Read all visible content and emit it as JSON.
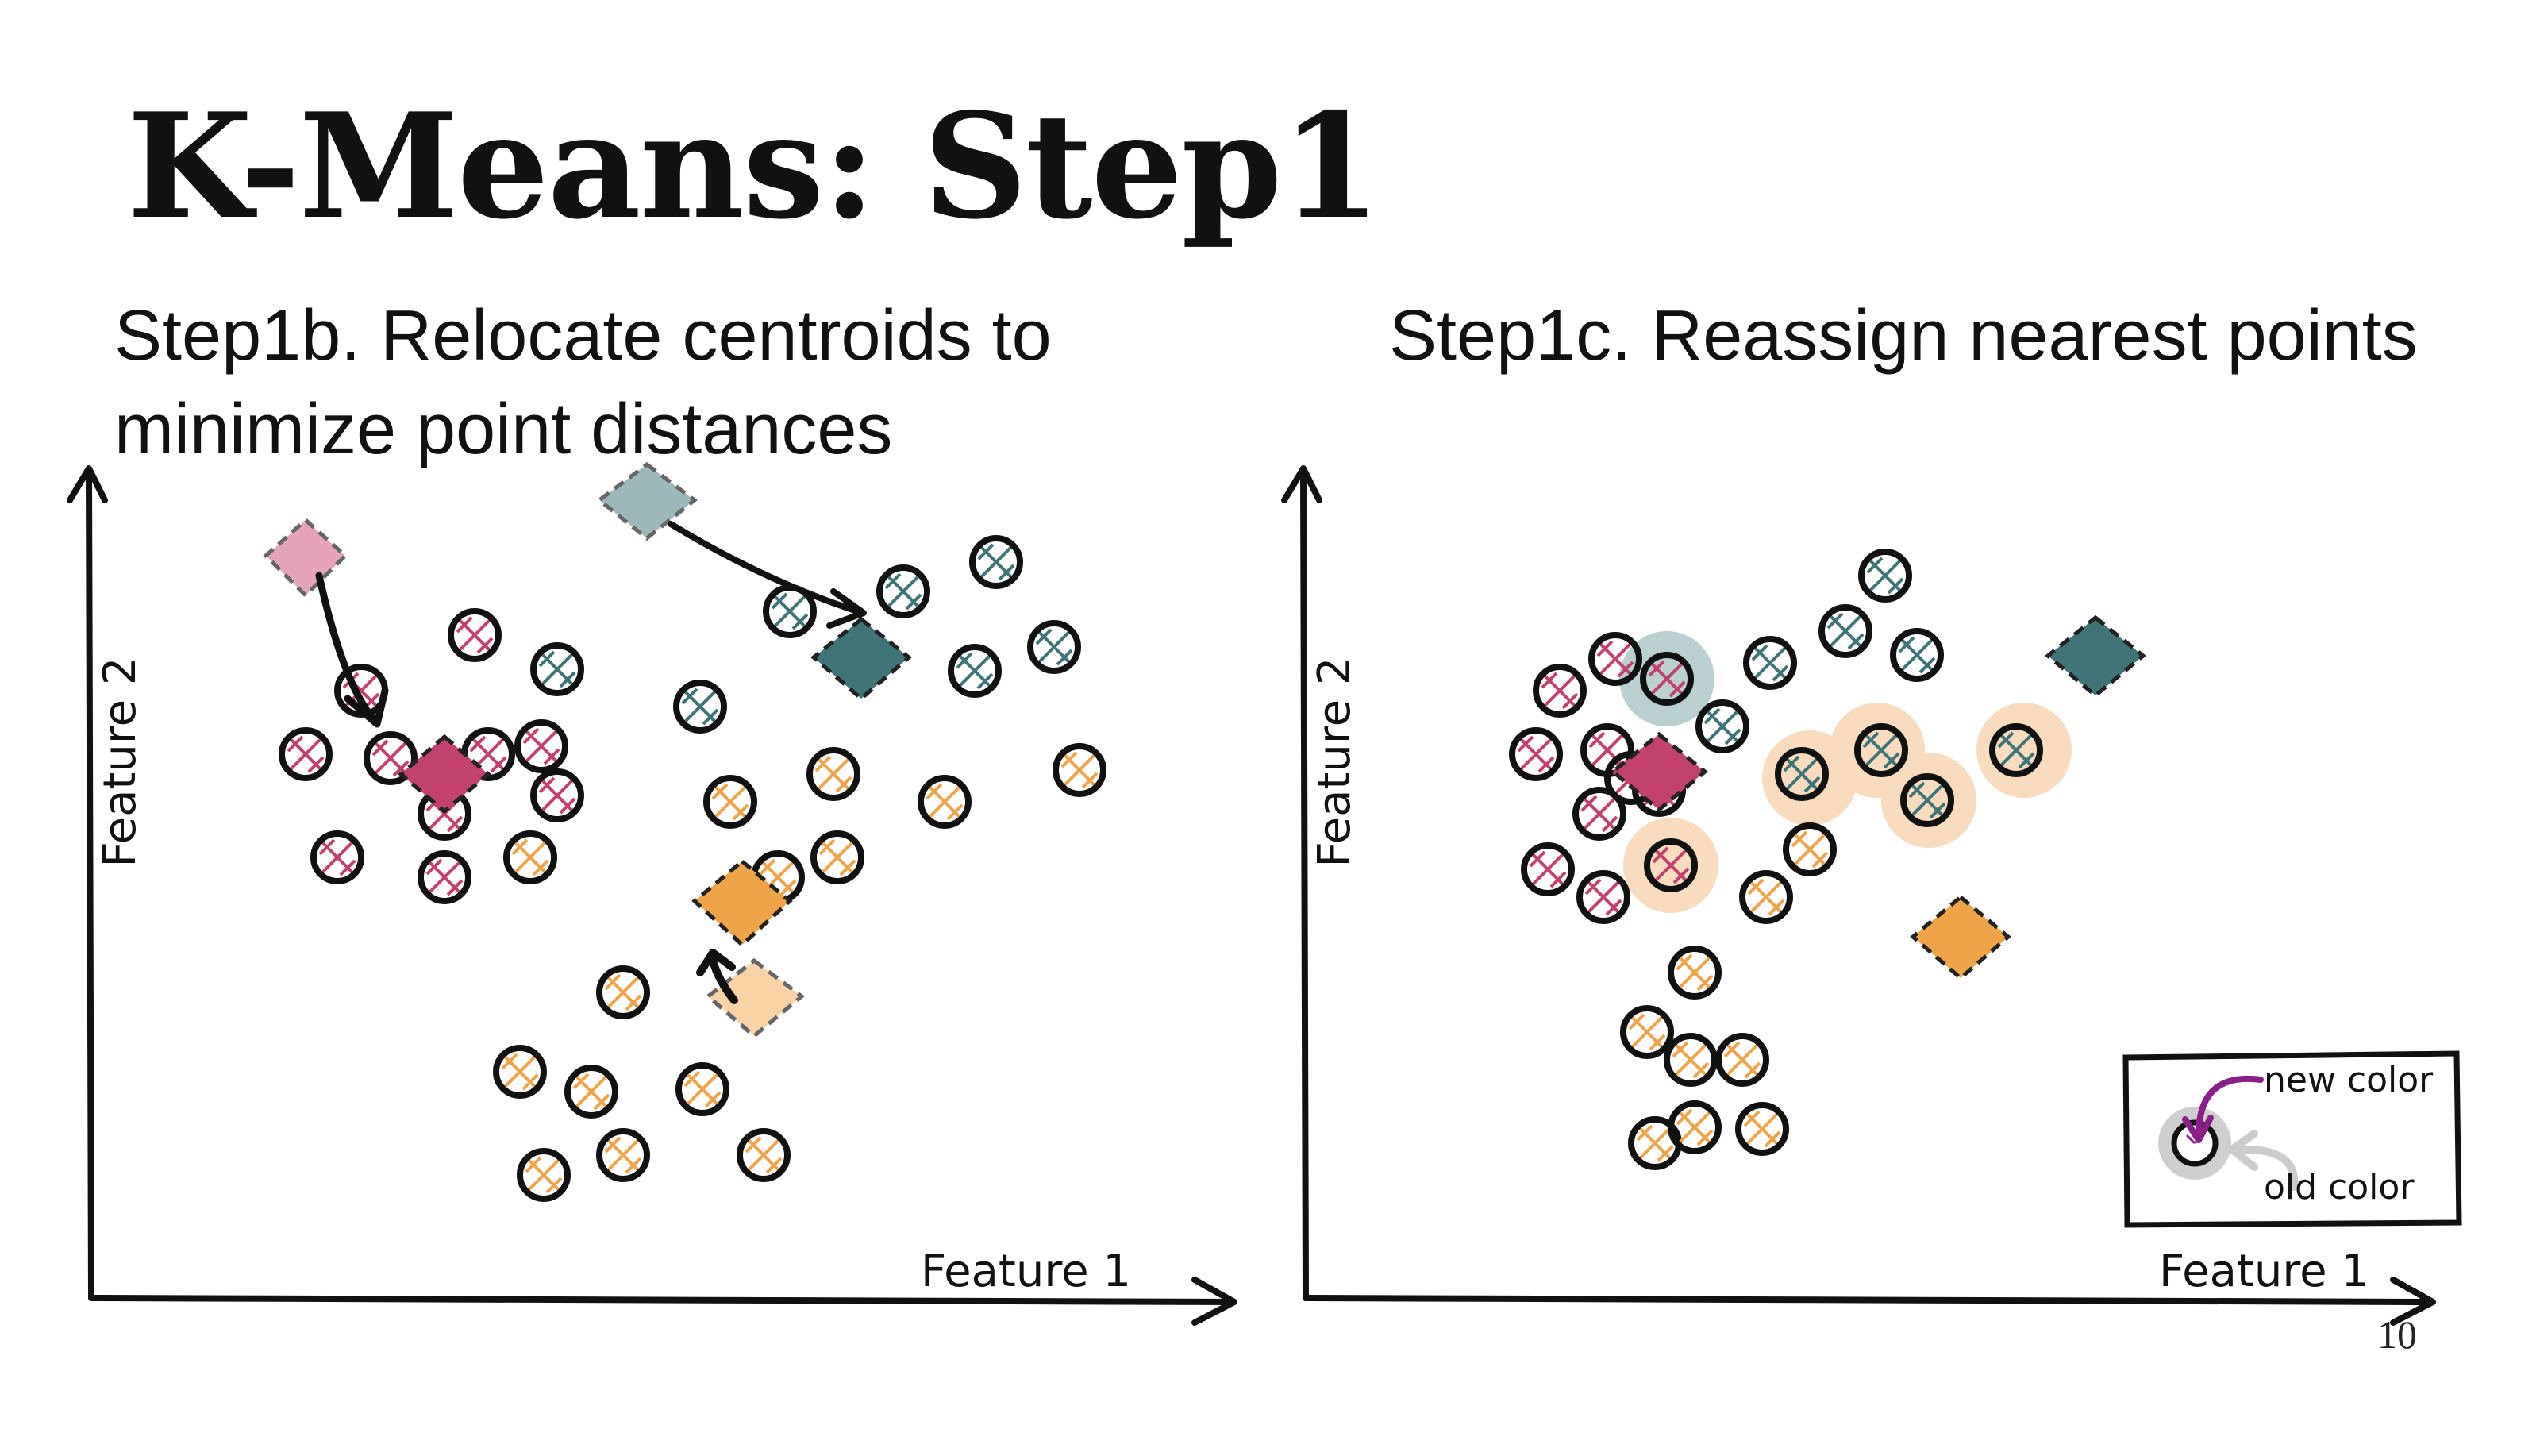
{
  "title": "K-Means: Step1",
  "left_panel": {
    "subtitle_line1": "Step1b. Relocate centroids to",
    "subtitle_line2": "minimize point distances",
    "x_label": "Feature 1",
    "y_label": "Feature 2"
  },
  "right_panel": {
    "subtitle": "Step1c. Reassign nearest points",
    "x_label": "Feature 1",
    "y_label": "Feature 2",
    "legend": {
      "new_label": "new color",
      "old_label": "old color"
    }
  },
  "page_number": "10",
  "colors": {
    "pink": "#c2416f",
    "teal": "#3f7478",
    "orange": "#f0a448",
    "pink_light": "#e6a3bc",
    "teal_light": "#9db8bb",
    "orange_light": "#f9d3a6",
    "teal_halo": "#b9cfd0",
    "orange_halo": "#f8dcbd",
    "legend_arrow": "#8a1f8a",
    "legend_halo": "#cfcfcf"
  }
}
